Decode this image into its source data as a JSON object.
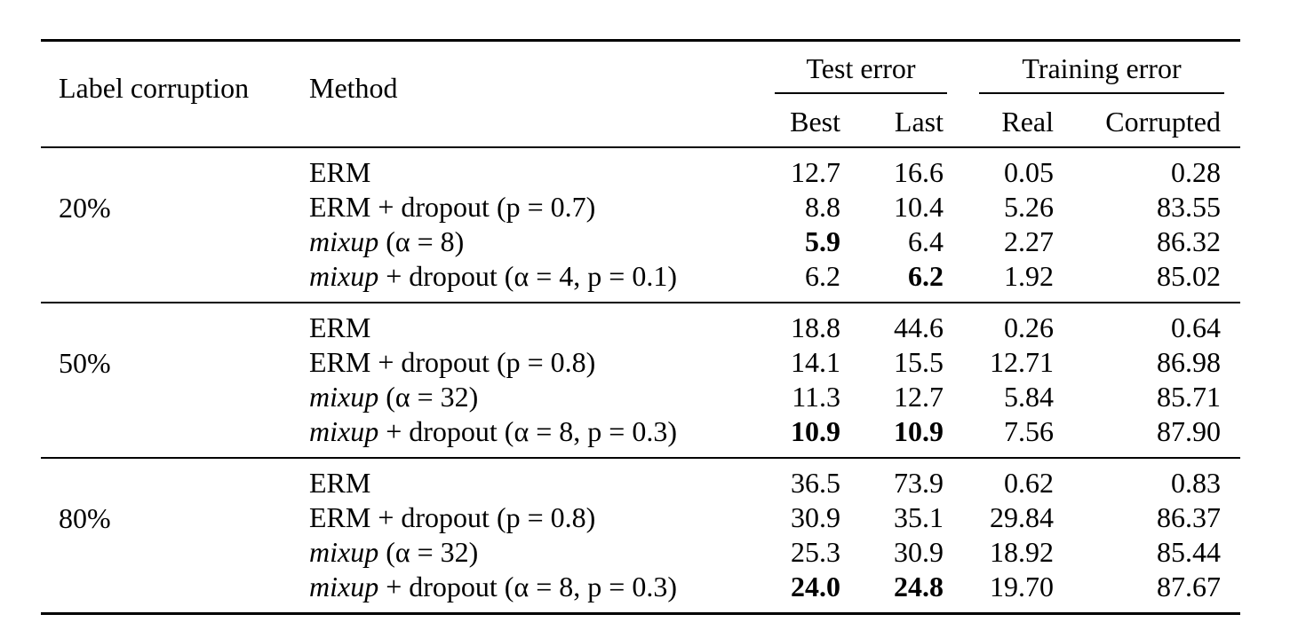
{
  "header": {
    "label_corruption": "Label corruption",
    "method": "Method",
    "test_error": "Test error",
    "training_error": "Training error",
    "best": "Best",
    "last": "Last",
    "real": "Real",
    "corrupted": "Corrupted"
  },
  "groups": [
    {
      "corruption": "20%",
      "rows": [
        {
          "method_prefix": "",
          "method_rest": "ERM",
          "best": "12.7",
          "last": "16.6",
          "real": "0.05",
          "corrupted": "0.28",
          "best_bold": false,
          "last_bold": false
        },
        {
          "method_prefix": "",
          "method_rest": "ERM + dropout (p = 0.7)",
          "best": "8.8",
          "last": "10.4",
          "real": "5.26",
          "corrupted": "83.55",
          "best_bold": false,
          "last_bold": false
        },
        {
          "method_prefix": "mixup",
          "method_rest": " (α = 8)",
          "best": "5.9",
          "last": "6.4",
          "real": "2.27",
          "corrupted": "86.32",
          "best_bold": true,
          "last_bold": false
        },
        {
          "method_prefix": "mixup",
          "method_rest": " + dropout (α = 4, p = 0.1)",
          "best": "6.2",
          "last": "6.2",
          "real": "1.92",
          "corrupted": "85.02",
          "best_bold": false,
          "last_bold": true
        }
      ]
    },
    {
      "corruption": "50%",
      "rows": [
        {
          "method_prefix": "",
          "method_rest": "ERM",
          "best": "18.8",
          "last": "44.6",
          "real": "0.26",
          "corrupted": "0.64",
          "best_bold": false,
          "last_bold": false
        },
        {
          "method_prefix": "",
          "method_rest": "ERM + dropout (p = 0.8)",
          "best": "14.1",
          "last": "15.5",
          "real": "12.71",
          "corrupted": "86.98",
          "best_bold": false,
          "last_bold": false
        },
        {
          "method_prefix": "mixup",
          "method_rest": " (α = 32)",
          "best": "11.3",
          "last": "12.7",
          "real": "5.84",
          "corrupted": "85.71",
          "best_bold": false,
          "last_bold": false
        },
        {
          "method_prefix": "mixup",
          "method_rest": " + dropout (α = 8, p = 0.3)",
          "best": "10.9",
          "last": "10.9",
          "real": "7.56",
          "corrupted": "87.90",
          "best_bold": true,
          "last_bold": true
        }
      ]
    },
    {
      "corruption": "80%",
      "rows": [
        {
          "method_prefix": "",
          "method_rest": "ERM",
          "best": "36.5",
          "last": "73.9",
          "real": "0.62",
          "corrupted": "0.83",
          "best_bold": false,
          "last_bold": false
        },
        {
          "method_prefix": "",
          "method_rest": "ERM + dropout (p = 0.8)",
          "best": "30.9",
          "last": "35.1",
          "real": "29.84",
          "corrupted": "86.37",
          "best_bold": false,
          "last_bold": false
        },
        {
          "method_prefix": "mixup",
          "method_rest": " (α = 32)",
          "best": "25.3",
          "last": "30.9",
          "real": "18.92",
          "corrupted": "85.44",
          "best_bold": false,
          "last_bold": false
        },
        {
          "method_prefix": "mixup",
          "method_rest": " + dropout (α = 8, p = 0.3)",
          "best": "24.0",
          "last": "24.8",
          "real": "19.70",
          "corrupted": "87.67",
          "best_bold": true,
          "last_bold": true
        }
      ]
    }
  ]
}
